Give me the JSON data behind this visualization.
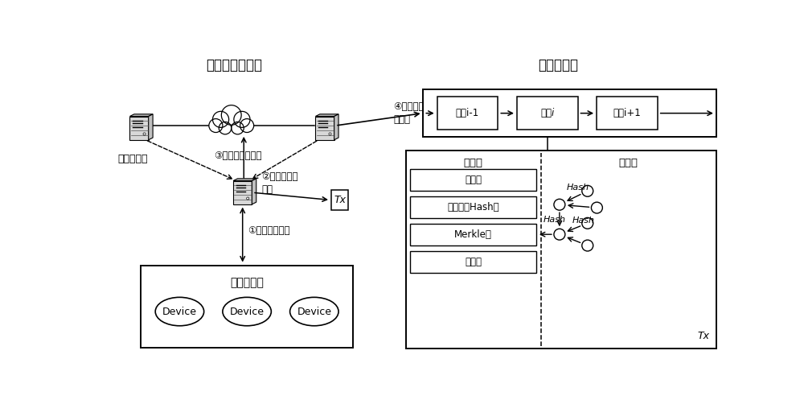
{
  "title_left": "联盟区块链网络",
  "title_right": "区块链结构",
  "bg_color": "#ffffff",
  "text_color": "#000000",
  "label_blockchain_node": "区块链节点",
  "label_iot": "物联网设备",
  "label_send": "③发送区块链交易",
  "label_generate": "②生成区块链\n交易",
  "label_register": "①注册、认证等",
  "label_form": "④形成最新\n区块链",
  "label_Tx": "Tx",
  "label_block_i_minus": "区块i-1",
  "label_block_i": "区块i",
  "label_block_i_plus": "区块i+1",
  "label_block_header": "区块头",
  "label_block_body": "区块体",
  "label_version": "版本号",
  "label_prev_hash": "前一区块Hash值",
  "label_merkle": "Merkle根",
  "label_timestamp": "时间戳",
  "label_hash_top": "Hash",
  "label_hash_mid": "Hash",
  "label_hash_bot": "Hash",
  "label_tx_bottom": "Tx",
  "label_device": "Device",
  "figsize": [
    10.0,
    4.92
  ],
  "dpi": 100
}
